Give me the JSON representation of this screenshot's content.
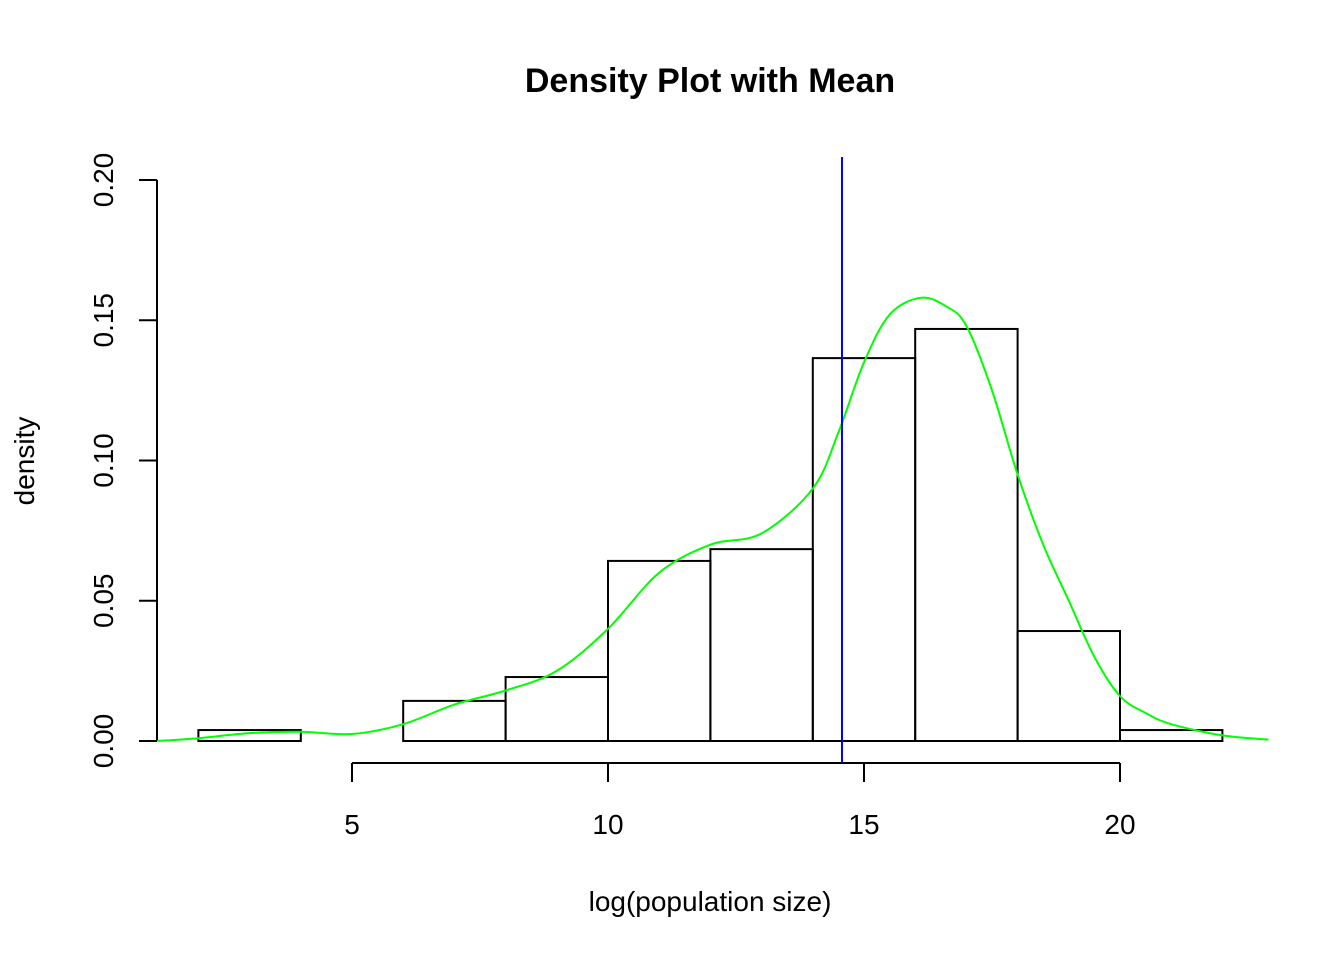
{
  "chart_data": {
    "type": "histogram+density",
    "title": "Density Plot with Mean",
    "xlabel": "log(population size)",
    "ylabel": "density",
    "xlim": [
      1.2,
      22.9
    ],
    "ylim": [
      0,
      0.2
    ],
    "x_ticks": [
      5,
      10,
      15,
      20
    ],
    "x_tick_labels": [
      "5",
      "10",
      "15",
      "20"
    ],
    "y_ticks": [
      0,
      0.05,
      0.1,
      0.15,
      0.2
    ],
    "y_tick_labels": [
      "0.00",
      "0.05",
      "0.10",
      "0.15",
      "0.20"
    ],
    "grid": false,
    "histogram": {
      "bin_edges": [
        2,
        4,
        6,
        8,
        10,
        12,
        14,
        16,
        18,
        20,
        22
      ],
      "density": [
        0.0039,
        0,
        0.0143,
        0.0228,
        0.0642,
        0.0684,
        0.1365,
        0.1469,
        0.0392,
        0.0039
      ]
    },
    "density_curve": {
      "color": "#00ff00",
      "x": [
        1.2,
        2,
        3,
        4,
        5,
        6,
        7,
        8,
        9,
        10,
        11,
        12,
        13,
        14,
        14.5,
        15,
        15.5,
        16.1,
        16.6,
        17,
        17.5,
        18,
        18.5,
        19,
        19.5,
        20,
        20.5,
        21,
        22,
        22.9
      ],
      "y": [
        0.0,
        0.001,
        0.0028,
        0.0033,
        0.0025,
        0.006,
        0.013,
        0.018,
        0.025,
        0.04,
        0.06,
        0.07,
        0.074,
        0.09,
        0.11,
        0.135,
        0.152,
        0.158,
        0.155,
        0.148,
        0.125,
        0.095,
        0.07,
        0.05,
        0.03,
        0.016,
        0.01,
        0.006,
        0.002,
        0.0005
      ]
    },
    "mean_line": {
      "x": 14.57,
      "color": "#0000ff"
    }
  }
}
